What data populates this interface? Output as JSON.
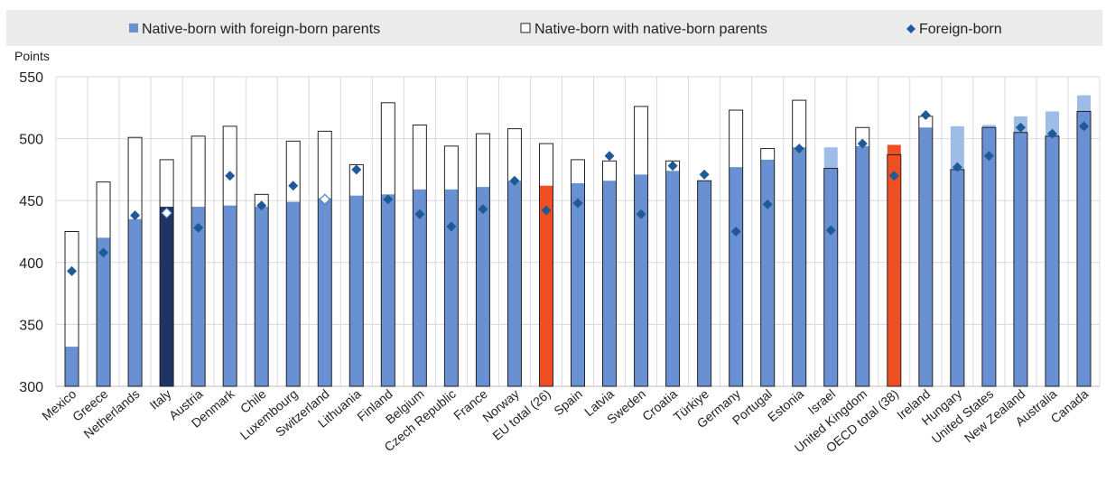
{
  "chart_data": {
    "type": "bar",
    "ylabel": "Points",
    "ylim": [
      300,
      550
    ],
    "yticks": [
      300,
      350,
      400,
      450,
      500,
      550
    ],
    "grid": true,
    "legend_position": "top",
    "categories": [
      "Mexico",
      "Greece",
      "Netherlands",
      "Italy",
      "Austria",
      "Denmark",
      "Chile",
      "Luxembourg",
      "Switzerland",
      "Lithuania",
      "Finland",
      "Belgium",
      "Czech Republic",
      "France",
      "Norway",
      "EU total (26)",
      "Spain",
      "Latvia",
      "Sweden",
      "Croatia",
      "Türkiye",
      "Germany",
      "Portugal",
      "Estonia",
      "Israel",
      "United Kingdom",
      "OECD total (38)",
      "Ireland",
      "Hungary",
      "United States",
      "New Zealand",
      "Australia",
      "Canada"
    ],
    "series": [
      {
        "name": "Native-born with foreign-born parents",
        "style": "filled-bar",
        "values": [
          332,
          420,
          435,
          445,
          445,
          446,
          445,
          449,
          452,
          454,
          455,
          459,
          459,
          461,
          466,
          462,
          464,
          466,
          471,
          474,
          466,
          477,
          483,
          493,
          493,
          494,
          495,
          509,
          510,
          511,
          518,
          522,
          535
        ]
      },
      {
        "name": "Native-born with native-born parents",
        "style": "outlined-bar",
        "values": [
          425,
          465,
          501,
          483,
          502,
          510,
          455,
          498,
          506,
          479,
          529,
          511,
          494,
          504,
          508,
          496,
          483,
          482,
          526,
          482,
          466,
          523,
          492,
          531,
          476,
          509,
          487,
          518,
          475,
          509,
          505,
          502,
          522
        ]
      },
      {
        "name": "Foreign-born",
        "style": "diamond-marker",
        "values": [
          393,
          408,
          438,
          440,
          428,
          470,
          446,
          462,
          451,
          475,
          451,
          439,
          429,
          443,
          466,
          442,
          448,
          486,
          439,
          478,
          471,
          425,
          447,
          492,
          426,
          496,
          470,
          519,
          477,
          486,
          509,
          504,
          510
        ]
      }
    ],
    "highlight": {
      "Italy": "#1f3364",
      "EU total (26)": "#f04e23",
      "OECD total (38)": "#f04e23"
    },
    "hollow_markers": [
      "Italy",
      "Switzerland"
    ],
    "colors": {
      "bar_fill": "#6a90d4",
      "bar_fill_light": "#9fbce6",
      "marker": "#1f5a96",
      "outline": "#222222",
      "grid": "#d9d9d9",
      "legend_bg": "#ebebeb"
    }
  }
}
